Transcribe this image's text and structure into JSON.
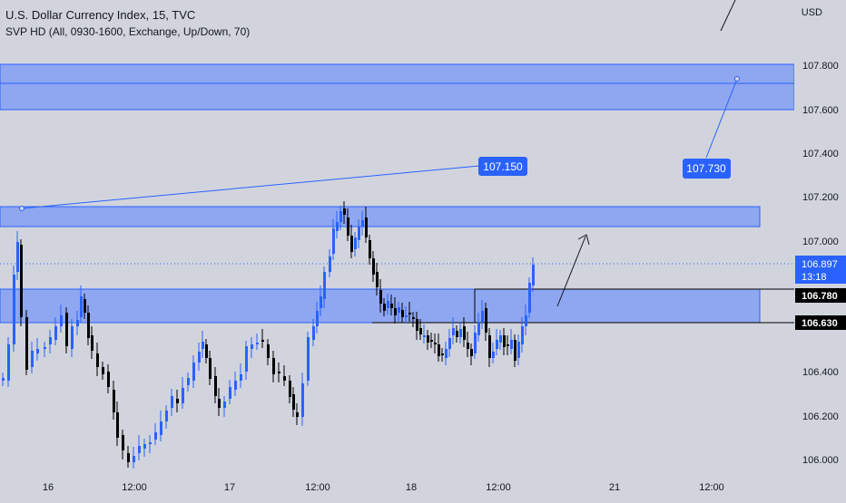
{
  "legend": {
    "title": "U.S. Dollar Currency Index, 15, TVC",
    "indicator": "SVP HD (All, 0930-1600, Exchange, Up/Down, 70)"
  },
  "price_axis": {
    "currency": "USD",
    "ticks": [
      "107.800",
      "107.600",
      "107.400",
      "107.200",
      "107.000",
      "106.400",
      "106.200",
      "106.000"
    ],
    "last_price": "106.897",
    "countdown": "13:18",
    "level_labels": [
      "106.780",
      "106.630"
    ]
  },
  "time_axis": {
    "labels": [
      "16",
      "12:00",
      "17",
      "12:00",
      "18",
      "12:00",
      "21",
      "12:00"
    ]
  },
  "annotations": {
    "callout_left": "107.150",
    "callout_right": "107.730"
  },
  "colors": {
    "background": "#d1d4dc",
    "zone_fill": "#8fa7f0",
    "zone_stroke": "#2962ff",
    "callout_bg": "#2962ff",
    "candle_up": "#2962ff",
    "candle_down": "#000000",
    "label_bg": "#000000",
    "label_text": "#ffffff"
  }
}
